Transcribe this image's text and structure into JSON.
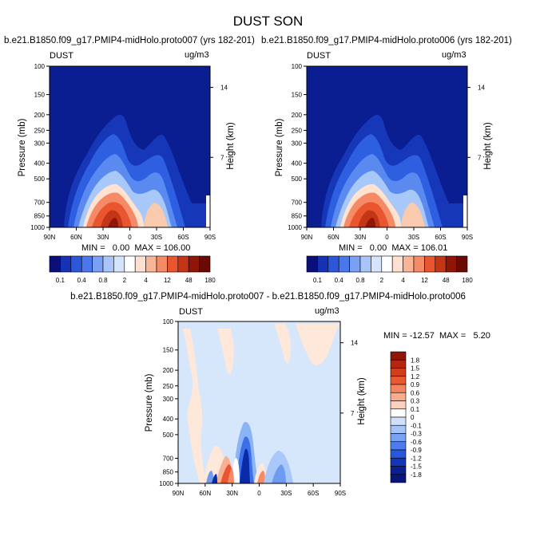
{
  "figure": {
    "title": "DUST SON"
  },
  "chart_data": [
    {
      "type": "heatmap",
      "title": "b.e21.B1850.f09_g17.PMIP4-midHolo.proto007 (yrs 182-201)",
      "left_label": "DUST",
      "right_label": "ug/m3",
      "xlabel": "",
      "ylabel": "Pressure (mb)",
      "y2label": "Height (km)",
      "x_ticks": [
        "90N",
        "60N",
        "30N",
        "0",
        "30S",
        "60S",
        "90S"
      ],
      "y_ticks": [
        "100",
        "150",
        "200",
        "250",
        "300",
        "400",
        "500",
        "700",
        "850",
        "1000"
      ],
      "y2_ticks": [
        "14",
        "7"
      ],
      "stats": "MIN =   0.00  MAX = 106.00",
      "min": 0.0,
      "max": 106.0,
      "colorbar_labels": [
        "0.1",
        "0.4",
        "0.8",
        "2",
        "4",
        "12",
        "48",
        "180"
      ]
    },
    {
      "type": "heatmap",
      "title": "b.e21.B1850.f09_g17.PMIP4-midHolo.proto006 (yrs 182-201)",
      "left_label": "DUST",
      "right_label": "ug/m3",
      "xlabel": "",
      "ylabel": "Pressure (mb)",
      "y2label": "Height (km)",
      "x_ticks": [
        "90N",
        "60N",
        "30N",
        "0",
        "30S",
        "60S",
        "90S"
      ],
      "y_ticks": [
        "100",
        "150",
        "200",
        "250",
        "300",
        "400",
        "500",
        "700",
        "850",
        "1000"
      ],
      "y2_ticks": [
        "14",
        "7"
      ],
      "stats": "MIN =   0.00  MAX = 106.01",
      "min": 0.0,
      "max": 106.01,
      "colorbar_labels": [
        "0.1",
        "0.4",
        "0.8",
        "2",
        "4",
        "12",
        "48",
        "180"
      ]
    },
    {
      "type": "heatmap",
      "title": "b.e21.B1850.f09_g17.PMIP4-midHolo.proto007 - b.e21.B1850.f09_g17.PMIP4-midHolo.proto006",
      "left_label": "DUST",
      "right_label": "ug/m3",
      "xlabel": "",
      "ylabel": "Pressure (mb)",
      "y2label": "Height (km)",
      "x_ticks": [
        "90N",
        "60N",
        "30N",
        "0",
        "30S",
        "60S",
        "90S"
      ],
      "y_ticks": [
        "100",
        "150",
        "200",
        "250",
        "300",
        "400",
        "500",
        "700",
        "850",
        "1000"
      ],
      "y2_ticks": [
        "14",
        "7"
      ],
      "stats": "MIN = -12.57  MAX =   5.20",
      "min": -12.57,
      "max": 5.2,
      "colorbar_labels": [
        "1.8",
        "1.5",
        "1.2",
        "0.9",
        "0.6",
        "0.3",
        "0.1",
        "0",
        "-0.1",
        "-0.3",
        "-0.6",
        "-0.9",
        "-1.2",
        "-1.5",
        "-1.8"
      ]
    }
  ]
}
